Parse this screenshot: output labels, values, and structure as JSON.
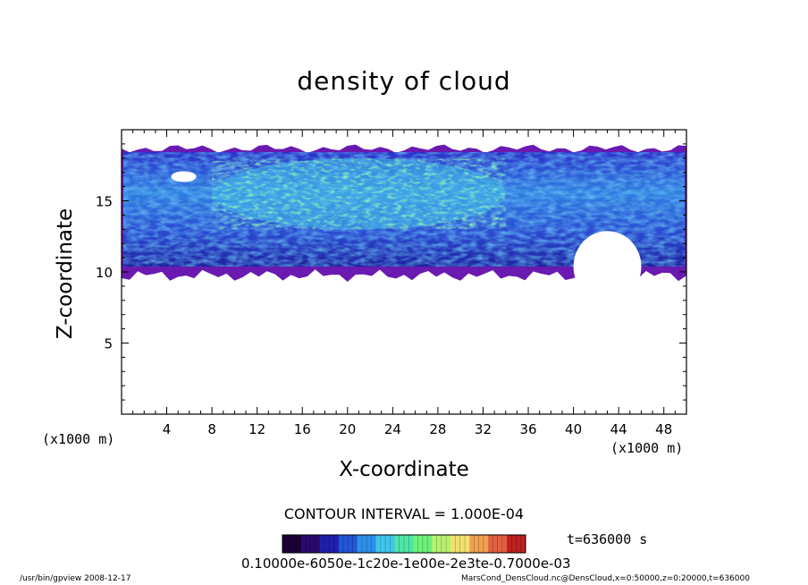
{
  "chart_data": {
    "type": "heatmap",
    "title": "density of cloud",
    "xlabel": "X-coordinate",
    "ylabel": "Z-coordinate",
    "x_unit": "(x1000 m)",
    "xlim": [
      0,
      50
    ],
    "ylim": [
      0,
      20
    ],
    "x_ticks": [
      4,
      8,
      12,
      16,
      20,
      24,
      28,
      32,
      36,
      40,
      44,
      48
    ],
    "y_ticks": [
      5,
      10,
      15
    ],
    "cloud_region": {
      "x_range": [
        0,
        50
      ],
      "z_bottom": 10,
      "z_top": 18.8,
      "dense_core": {
        "x_range": [
          8,
          34
        ],
        "z_range": [
          13,
          18
        ]
      },
      "gap": {
        "x_range": [
          40,
          46
        ],
        "z_range": [
          10,
          14
        ]
      }
    },
    "contour_interval": "CONTOUR INTERVAL = 1.000E-04",
    "colorbar": {
      "labels_text": "0.10000e-6050e-1c20e-1e00e-2e3te-0.7000e-03",
      "colors": [
        "#1a0033",
        "#2a0a6e",
        "#1f1fa8",
        "#2255d8",
        "#2f8fe8",
        "#40c6e8",
        "#4ee6a8",
        "#6ef07a",
        "#b8f070",
        "#f0e070",
        "#f0a050",
        "#e06040",
        "#c02020"
      ]
    },
    "time": "t=636000 s"
  },
  "footer": {
    "left": "/usr/bin/gpview   2008-12-17",
    "right": "MarsCond_DensCloud.nc@DensCloud,x=0:50000,z=0:20000,t=636000"
  }
}
